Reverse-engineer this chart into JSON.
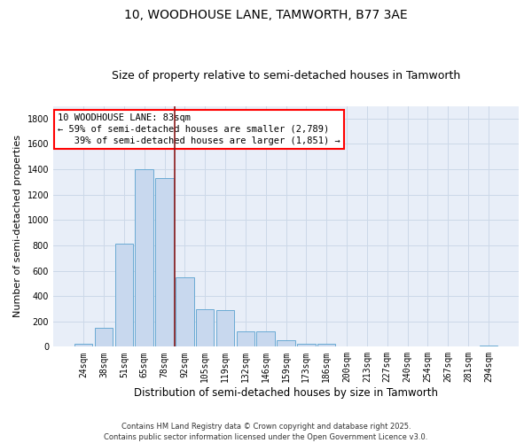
{
  "title1": "10, WOODHOUSE LANE, TAMWORTH, B77 3AE",
  "title2": "Size of property relative to semi-detached houses in Tamworth",
  "xlabel": "Distribution of semi-detached houses by size in Tamworth",
  "ylabel": "Number of semi-detached properties",
  "bar_labels": [
    "24sqm",
    "38sqm",
    "51sqm",
    "65sqm",
    "78sqm",
    "92sqm",
    "105sqm",
    "119sqm",
    "132sqm",
    "146sqm",
    "159sqm",
    "173sqm",
    "186sqm",
    "200sqm",
    "213sqm",
    "227sqm",
    "240sqm",
    "254sqm",
    "267sqm",
    "281sqm",
    "294sqm"
  ],
  "bar_values": [
    20,
    150,
    810,
    1400,
    1330,
    550,
    295,
    290,
    120,
    120,
    50,
    25,
    25,
    5,
    5,
    5,
    5,
    5,
    5,
    5,
    10
  ],
  "bar_color": "#c8d8ee",
  "bar_edge_color": "#6aaad4",
  "vline_x": 4.5,
  "vline_color": "#8b1a1a",
  "annotation_text": "10 WOODHOUSE LANE: 83sqm\n← 59% of semi-detached houses are smaller (2,789)\n   39% of semi-detached houses are larger (1,851) →",
  "ylim": [
    0,
    1900
  ],
  "yticks": [
    0,
    200,
    400,
    600,
    800,
    1000,
    1200,
    1400,
    1600,
    1800
  ],
  "grid_color": "#ccd8e8",
  "bg_color": "#e8eef8",
  "fig_bg_color": "#ffffff",
  "footnote": "Contains HM Land Registry data © Crown copyright and database right 2025.\nContains public sector information licensed under the Open Government Licence v3.0.",
  "title_fontsize": 10,
  "subtitle_fontsize": 9,
  "tick_fontsize": 7,
  "ylabel_fontsize": 8,
  "xlabel_fontsize": 8.5,
  "annot_fontsize": 7.5
}
